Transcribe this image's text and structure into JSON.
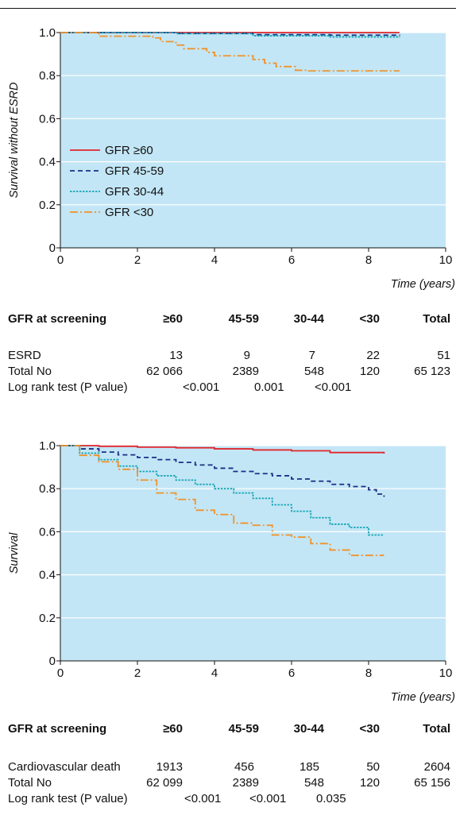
{
  "colors": {
    "plot_bg": "#c3e6f6",
    "grid": "#ffffff",
    "gfr60": "#e0262c",
    "gfr45": "#1b2f86",
    "gfr30": "#16a6b4",
    "gfrlt30": "#f0922a"
  },
  "chart_data": [
    {
      "type": "line",
      "title": "",
      "xlabel": "Time (years)",
      "ylabel": "Survival without ESRD",
      "xlim": [
        0,
        10
      ],
      "ylim": [
        0,
        1.0
      ],
      "xticks": [
        "0",
        "2",
        "4",
        "6",
        "8",
        "10"
      ],
      "yticks": [
        "0",
        "0.2",
        "0.4",
        "0.6",
        "0.8",
        "1.0"
      ],
      "grid": "horizontal",
      "legend_position": "center-left",
      "series": [
        {
          "name": "GFR ≥60",
          "color": "#e0262c",
          "style": "solid",
          "x": [
            0,
            8.8
          ],
          "y": [
            1.0,
            1.0
          ]
        },
        {
          "name": "GFR 45-59",
          "color": "#1b2f86",
          "style": "dashed",
          "x": [
            0,
            3,
            5,
            7,
            8.8
          ],
          "y": [
            1.0,
            0.996,
            0.99,
            0.988,
            0.986
          ]
        },
        {
          "name": "GFR 30-44",
          "color": "#16a6b4",
          "style": "dotted",
          "x": [
            0,
            3,
            5,
            7,
            8.8
          ],
          "y": [
            1.0,
            0.995,
            0.985,
            0.98,
            0.978
          ]
        },
        {
          "name": "GFR <30",
          "color": "#f0922a",
          "style": "dashdot",
          "x": [
            0,
            0.9,
            1.0,
            2.4,
            2.6,
            3.0,
            3.2,
            3.8,
            4.0,
            5.0,
            5.3,
            5.6,
            6.0,
            6.1,
            6.4,
            8.8
          ],
          "y": [
            1.0,
            1.0,
            0.983,
            0.975,
            0.958,
            0.942,
            0.925,
            0.908,
            0.892,
            0.875,
            0.858,
            0.842,
            0.842,
            0.825,
            0.822,
            0.822
          ]
        }
      ]
    },
    {
      "type": "line",
      "title": "",
      "xlabel": "Time (years)",
      "ylabel": "Survival",
      "xlim": [
        0,
        10
      ],
      "ylim": [
        0,
        1.0
      ],
      "xticks": [
        "0",
        "2",
        "4",
        "6",
        "8",
        "10"
      ],
      "yticks": [
        "0",
        "0.2",
        "0.4",
        "0.6",
        "0.8",
        "1.0"
      ],
      "grid": "horizontal",
      "series": [
        {
          "name": "GFR ≥60",
          "color": "#e0262c",
          "style": "solid",
          "x": [
            0,
            1,
            2,
            3,
            4,
            5,
            6,
            7,
            8.4
          ],
          "y": [
            1.0,
            0.997,
            0.993,
            0.99,
            0.985,
            0.98,
            0.976,
            0.968,
            0.963
          ]
        },
        {
          "name": "GFR 45-59",
          "color": "#1b2f86",
          "style": "dashed",
          "x": [
            0,
            0.5,
            1,
            1.5,
            2,
            2.5,
            3,
            3.5,
            4,
            4.5,
            5,
            5.5,
            6,
            6.5,
            7,
            7.5,
            8,
            8.2,
            8.4
          ],
          "y": [
            1.0,
            0.985,
            0.97,
            0.957,
            0.945,
            0.935,
            0.922,
            0.91,
            0.895,
            0.88,
            0.87,
            0.86,
            0.845,
            0.835,
            0.82,
            0.81,
            0.795,
            0.775,
            0.762
          ]
        },
        {
          "name": "GFR 30-44",
          "color": "#16a6b4",
          "style": "dotted",
          "x": [
            0,
            0.5,
            1,
            1.5,
            2,
            2.5,
            3,
            3.5,
            4,
            4.5,
            5,
            5.5,
            6,
            6.5,
            7,
            7.5,
            8,
            8.4
          ],
          "y": [
            1.0,
            0.965,
            0.935,
            0.905,
            0.88,
            0.86,
            0.84,
            0.82,
            0.8,
            0.78,
            0.755,
            0.725,
            0.695,
            0.665,
            0.635,
            0.62,
            0.585,
            0.585
          ]
        },
        {
          "name": "GFR <30",
          "color": "#f0922a",
          "style": "dashdot",
          "x": [
            0,
            0.5,
            1,
            1.5,
            2,
            2.5,
            3,
            3.5,
            4,
            4.5,
            5,
            5.5,
            6,
            6.5,
            7,
            7.5,
            8.4
          ],
          "y": [
            1.0,
            0.955,
            0.925,
            0.89,
            0.84,
            0.78,
            0.75,
            0.7,
            0.68,
            0.64,
            0.63,
            0.585,
            0.575,
            0.545,
            0.515,
            0.49,
            0.49
          ]
        }
      ]
    }
  ],
  "table1": {
    "header": [
      "GFR at screening",
      "≥60",
      "45-59",
      "30-44",
      "<30",
      "Total"
    ],
    "row1": [
      "ESRD",
      "13",
      "9",
      "7",
      "22",
      "51"
    ],
    "row2": [
      "Total No",
      "62 066",
      "2389",
      "548",
      "120",
      "65 123"
    ],
    "logrank": {
      "label": "Log rank test (P value)",
      "values": [
        "<0.001",
        "0.001",
        "<0.001"
      ]
    }
  },
  "table2": {
    "header": [
      "GFR at screening",
      "≥60",
      "45-59",
      "30-44",
      "<30",
      "Total"
    ],
    "row1": [
      "Cardiovascular death",
      "1913",
      "456",
      "185",
      "50",
      "2604"
    ],
    "row2": [
      "Total No",
      "62 099",
      "2389",
      "548",
      "120",
      "65 156"
    ],
    "logrank": {
      "label": "Log rank test (P value)",
      "values": [
        "<0.001",
        "<0.001",
        "0.035"
      ]
    }
  }
}
